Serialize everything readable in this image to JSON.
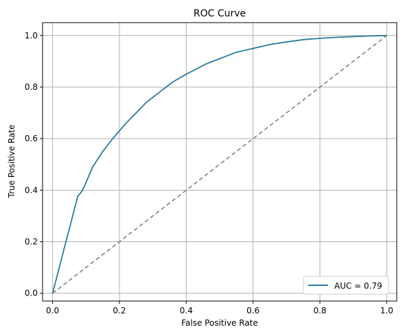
{
  "colors": {
    "roc_line": "#2a7a9e",
    "baseline": "#808080",
    "grid": "#b0b0b0",
    "axis": "#000000"
  },
  "chart_data": {
    "type": "line",
    "title": "ROC Curve",
    "xlabel": "False Positive Rate",
    "ylabel": "True Positive Rate",
    "xlim": [
      -0.03,
      1.03
    ],
    "ylim": [
      -0.03,
      1.05
    ],
    "xticks": [
      0.0,
      0.2,
      0.4,
      0.6,
      0.8,
      1.0
    ],
    "xtick_labels": [
      "0.0",
      "0.2",
      "0.4",
      "0.6",
      "0.8",
      "1.0"
    ],
    "yticks": [
      0.0,
      0.2,
      0.4,
      0.6,
      0.8,
      1.0
    ],
    "ytick_labels": [
      "0.0",
      "0.2",
      "0.4",
      "0.6",
      "0.8",
      "1.0"
    ],
    "grid": true,
    "legend_position": "lower-right",
    "series": [
      {
        "name": "AUC = 0.79",
        "style": "solid",
        "x": [
          0.0,
          0.075,
          0.09,
          0.1,
          0.12,
          0.15,
          0.18,
          0.2,
          0.22,
          0.25,
          0.28,
          0.3,
          0.33,
          0.36,
          0.38,
          0.4,
          0.43,
          0.46,
          0.5,
          0.55,
          0.6,
          0.65,
          0.7,
          0.75,
          0.8,
          0.85,
          0.9,
          0.95,
          1.0
        ],
        "y": [
          0.0,
          0.375,
          0.4,
          0.43,
          0.49,
          0.55,
          0.6,
          0.63,
          0.66,
          0.7,
          0.74,
          0.76,
          0.79,
          0.82,
          0.835,
          0.85,
          0.87,
          0.89,
          0.91,
          0.935,
          0.95,
          0.965,
          0.975,
          0.984,
          0.989,
          0.993,
          0.996,
          0.998,
          1.0
        ]
      },
      {
        "style": "dashed",
        "x": [
          0.0,
          1.0
        ],
        "y": [
          0.0,
          1.0
        ]
      }
    ],
    "legend": [
      {
        "label": "AUC = 0.79"
      }
    ]
  }
}
